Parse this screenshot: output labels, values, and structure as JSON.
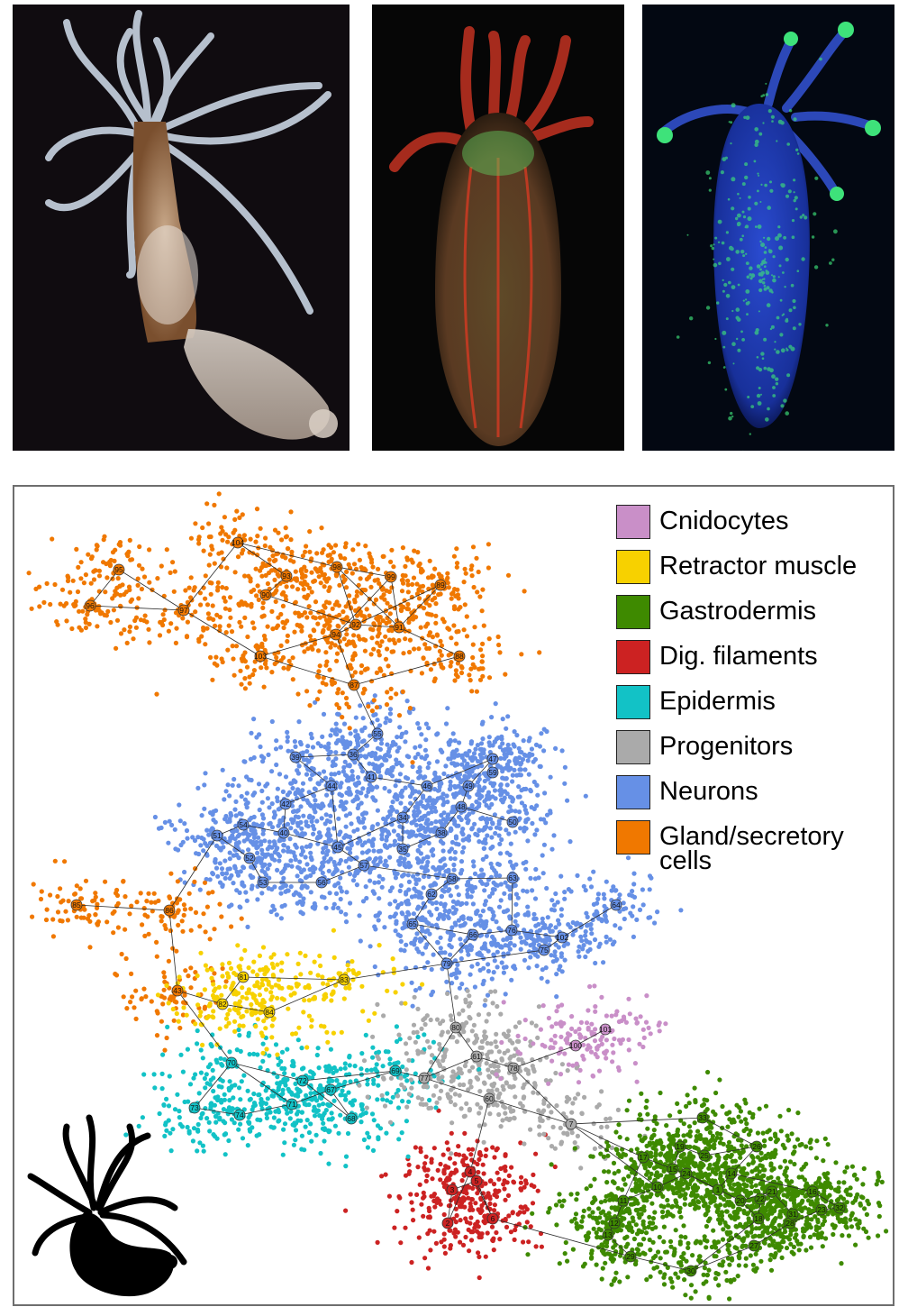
{
  "legend": {
    "items": [
      {
        "label": "Cnidocytes",
        "color": "#c98fc8"
      },
      {
        "label": "Retractor muscle",
        "color": "#f7d100"
      },
      {
        "label": "Gastrodermis",
        "color": "#3e8a00"
      },
      {
        "label": "Dig. filaments",
        "color": "#cc2222"
      },
      {
        "label": "Epidermis",
        "color": "#12c2c6"
      },
      {
        "label": "Progenitors",
        "color": "#aaaaaa"
      },
      {
        "label": "Neurons",
        "color": "#6690e6"
      },
      {
        "label": "Gland/secretory cells",
        "color": "#f07800"
      }
    ]
  },
  "graph": {
    "clusters": [
      {
        "id": "1",
        "group": "Gastrodermis"
      },
      {
        "id": "2",
        "group": "Dig. filaments"
      },
      {
        "id": "3",
        "group": "Dig. filaments"
      },
      {
        "id": "4",
        "group": "Dig. filaments"
      },
      {
        "id": "5",
        "group": "Dig. filaments"
      },
      {
        "id": "6",
        "group": "Dig. filaments"
      },
      {
        "id": "7",
        "group": "Progenitors"
      },
      {
        "id": "10",
        "group": "Gastrodermis"
      },
      {
        "id": "11",
        "group": "Gastrodermis"
      },
      {
        "id": "12",
        "group": "Gastrodermis"
      },
      {
        "id": "13",
        "group": "Gastrodermis"
      },
      {
        "id": "14",
        "group": "Gastrodermis"
      },
      {
        "id": "15",
        "group": "Gastrodermis"
      },
      {
        "id": "16",
        "group": "Gastrodermis"
      },
      {
        "id": "17",
        "group": "Gastrodermis"
      },
      {
        "id": "18",
        "group": "Gastrodermis"
      },
      {
        "id": "19",
        "group": "Gastrodermis"
      },
      {
        "id": "20",
        "group": "Gastrodermis"
      },
      {
        "id": "21",
        "group": "Gastrodermis"
      },
      {
        "id": "22",
        "group": "Gastrodermis"
      },
      {
        "id": "23",
        "group": "Gastrodermis"
      },
      {
        "id": "24",
        "group": "Gastrodermis"
      },
      {
        "id": "25",
        "group": "Gastrodermis"
      },
      {
        "id": "26",
        "group": "Gastrodermis"
      },
      {
        "id": "27",
        "group": "Gastrodermis"
      },
      {
        "id": "28",
        "group": "Gastrodermis"
      },
      {
        "id": "29",
        "group": "Gastrodermis"
      },
      {
        "id": "30",
        "group": "Gastrodermis"
      },
      {
        "id": "31",
        "group": "Gastrodermis"
      },
      {
        "id": "32",
        "group": "Gastrodermis"
      },
      {
        "id": "33",
        "group": "Gastrodermis"
      },
      {
        "id": "34",
        "group": "Neurons"
      },
      {
        "id": "35",
        "group": "Neurons"
      },
      {
        "id": "36",
        "group": "Neurons"
      },
      {
        "id": "37",
        "group": "Neurons"
      },
      {
        "id": "38",
        "group": "Neurons"
      },
      {
        "id": "39",
        "group": "Neurons"
      },
      {
        "id": "40",
        "group": "Neurons"
      },
      {
        "id": "41",
        "group": "Neurons"
      },
      {
        "id": "42",
        "group": "Neurons"
      },
      {
        "id": "43",
        "group": "Gland/secretory cells"
      },
      {
        "id": "44",
        "group": "Neurons"
      },
      {
        "id": "45",
        "group": "Neurons"
      },
      {
        "id": "46",
        "group": "Neurons"
      },
      {
        "id": "47",
        "group": "Neurons"
      },
      {
        "id": "48",
        "group": "Neurons"
      },
      {
        "id": "49",
        "group": "Neurons"
      },
      {
        "id": "50",
        "group": "Neurons"
      },
      {
        "id": "51",
        "group": "Neurons"
      },
      {
        "id": "52",
        "group": "Neurons"
      },
      {
        "id": "53",
        "group": "Neurons"
      },
      {
        "id": "54",
        "group": "Neurons"
      },
      {
        "id": "55",
        "group": "Neurons"
      },
      {
        "id": "56",
        "group": "Neurons"
      },
      {
        "id": "57",
        "group": "Neurons"
      },
      {
        "id": "58",
        "group": "Neurons"
      },
      {
        "id": "59",
        "group": "Neurons"
      },
      {
        "id": "60",
        "group": "Progenitors"
      },
      {
        "id": "61",
        "group": "Progenitors"
      },
      {
        "id": "62",
        "group": "Neurons"
      },
      {
        "id": "63",
        "group": "Neurons"
      },
      {
        "id": "64",
        "group": "Neurons"
      },
      {
        "id": "65",
        "group": "Neurons"
      },
      {
        "id": "66",
        "group": "Neurons"
      },
      {
        "id": "67",
        "group": "Epidermis"
      },
      {
        "id": "68",
        "group": "Epidermis"
      },
      {
        "id": "69",
        "group": "Epidermis"
      },
      {
        "id": "70",
        "group": "Epidermis"
      },
      {
        "id": "71",
        "group": "Epidermis"
      },
      {
        "id": "72",
        "group": "Epidermis"
      },
      {
        "id": "73",
        "group": "Epidermis"
      },
      {
        "id": "74",
        "group": "Epidermis"
      },
      {
        "id": "75",
        "group": "Neurons"
      },
      {
        "id": "76",
        "group": "Neurons"
      },
      {
        "id": "77",
        "group": "Progenitors"
      },
      {
        "id": "78",
        "group": "Progenitors"
      },
      {
        "id": "79",
        "group": "Neurons"
      },
      {
        "id": "80",
        "group": "Progenitors"
      },
      {
        "id": "81",
        "group": "Retractor muscle"
      },
      {
        "id": "82",
        "group": "Retractor muscle"
      },
      {
        "id": "83",
        "group": "Retractor muscle"
      },
      {
        "id": "84",
        "group": "Retractor muscle"
      },
      {
        "id": "85",
        "group": "Gland/secretory cells"
      },
      {
        "id": "86",
        "group": "Gland/secretory cells"
      },
      {
        "id": "87",
        "group": "Gland/secretory cells"
      },
      {
        "id": "88",
        "group": "Gland/secretory cells"
      },
      {
        "id": "89",
        "group": "Gland/secretory cells"
      },
      {
        "id": "90",
        "group": "Gland/secretory cells"
      },
      {
        "id": "91",
        "group": "Gland/secretory cells"
      },
      {
        "id": "92",
        "group": "Gland/secretory cells"
      },
      {
        "id": "93",
        "group": "Gland/secretory cells"
      },
      {
        "id": "94",
        "group": "Gland/secretory cells"
      },
      {
        "id": "95",
        "group": "Gland/secretory cells"
      },
      {
        "id": "96",
        "group": "Gland/secretory cells"
      },
      {
        "id": "97",
        "group": "Gland/secretory cells"
      },
      {
        "id": "98",
        "group": "Gland/secretory cells"
      },
      {
        "id": "99",
        "group": "Gland/secretory cells"
      },
      {
        "id": "100",
        "group": "Cnidocytes"
      },
      {
        "id": "101",
        "group": "Cnidocytes"
      },
      {
        "id": "102",
        "group": "Neurons"
      },
      {
        "id": "103",
        "group": "Gland/secretory cells"
      },
      {
        "id": "104",
        "group": "Gland/secretory cells"
      }
    ]
  }
}
